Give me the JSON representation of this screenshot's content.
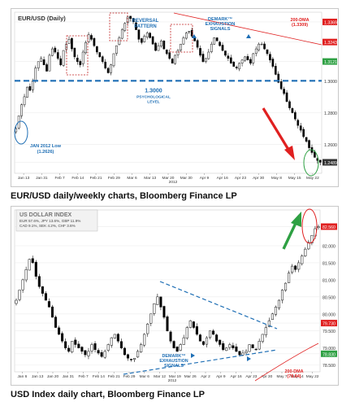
{
  "captions": {
    "top": "EUR/USD daily/weekly charts, Bloomberg Finance LP",
    "bottom": "USD Index daily chart, Bloomberg Finance LP"
  },
  "chart_data": [
    {
      "type": "candlestick",
      "title": "EUR/USD (Daily)",
      "ylim": [
        1.242,
        1.343
      ],
      "x_ticks": [
        "Jan 13",
        "Jan 31",
        "Feb 7",
        "Feb 14",
        "Feb 21",
        "Feb 29",
        "Mar 6",
        "Mar 13",
        "Mar 20",
        "Mar 30",
        "Apr 9",
        "Apr 16",
        "Apr 23",
        "Apr 30",
        "May 8",
        "May 15",
        "May 22"
      ],
      "year_label": "2012",
      "y_ticks": [
        {
          "value": 1.3369,
          "label": "1.3369",
          "highlight": "red"
        },
        {
          "value": 1.3243,
          "label": "1.3243",
          "highlight": "red"
        },
        {
          "value": 1.3121,
          "label": "1.3121",
          "highlight": "green"
        },
        {
          "value": 1.3,
          "label": "1.3000",
          "highlight": "none"
        },
        {
          "value": 1.28,
          "label": "1.2800",
          "highlight": "none"
        },
        {
          "value": 1.26,
          "label": "1.2600",
          "highlight": "none"
        },
        {
          "value": 1.2489,
          "label": "1.2489",
          "highlight": "dark"
        }
      ],
      "closes": [
        1.27,
        1.278,
        1.285,
        1.29,
        1.296,
        1.294,
        1.3,
        1.308,
        1.312,
        1.314,
        1.31,
        1.306,
        1.316,
        1.32,
        1.318,
        1.314,
        1.31,
        1.319,
        1.323,
        1.326,
        1.32,
        1.315,
        1.312,
        1.31,
        1.318,
        1.324,
        1.329,
        1.326,
        1.322,
        1.318,
        1.315,
        1.312,
        1.308,
        1.305,
        1.31,
        1.317,
        1.322,
        1.327,
        1.332,
        1.336,
        1.34,
        1.339,
        1.337,
        1.332,
        1.326,
        1.324,
        1.328,
        1.33,
        1.327,
        1.323,
        1.319,
        1.322,
        1.325,
        1.32,
        1.317,
        1.314,
        1.311,
        1.316,
        1.319,
        1.323,
        1.327,
        1.33,
        1.331,
        1.328,
        1.325,
        1.321,
        1.316,
        1.312,
        1.314,
        1.318,
        1.323,
        1.327,
        1.325,
        1.322,
        1.319,
        1.316,
        1.314,
        1.311,
        1.309,
        1.308,
        1.311,
        1.313,
        1.315,
        1.313,
        1.311,
        1.317,
        1.32,
        1.323,
        1.323,
        1.32,
        1.317,
        1.313,
        1.309,
        1.304,
        1.299,
        1.295,
        1.292,
        1.287,
        1.283,
        1.28,
        1.276,
        1.272,
        1.269,
        1.265,
        1.262,
        1.258,
        1.255,
        1.252,
        1.25,
        1.2489
      ],
      "annotations": {
        "reversal": "REVERSAL PATTERN",
        "demark": "DEMARK™ EXHAUSTION SIGNALS",
        "psych_value": "1.3000",
        "psych_label": "PSYCHOLOGICAL LEVEL",
        "low_line1": "JAN 2012 Low",
        "low_line2": "(1.2626)",
        "dma_line1": "200-DMA",
        "dma_line2": "(1.3309)"
      },
      "colors": {
        "up": "#ffffff",
        "down": "#000000",
        "accent": "#1f6fb5",
        "arrow": "#e02020",
        "green": "#2ea043"
      }
    },
    {
      "type": "candlestick",
      "title": "US DOLLAR INDEX",
      "ylim": [
        78.3,
        83.05
      ],
      "legend_lines": [
        "EUR 57.6%, JPY 13.6%, GBP 11.9%",
        "CAD 9.1%, SEK 4.2%, CHF 3.6%"
      ],
      "x_ticks": [
        "Jan 6",
        "Jan 13",
        "Jan 20",
        "Jan 31",
        "Feb 7",
        "Feb 14",
        "Feb 21",
        "Feb 29",
        "Mar 6",
        "Mar 12",
        "Mar 19",
        "Mar 26",
        "Apr 2",
        "Apr 9",
        "Apr 16",
        "Apr 23",
        "Apr 30",
        "May 7",
        "May 14",
        "May 22"
      ],
      "year_label": "2012",
      "y_ticks": [
        {
          "value": 82.56,
          "label": "82.560",
          "highlight": "red"
        },
        {
          "value": 82.0,
          "label": "82.000",
          "highlight": "none"
        },
        {
          "value": 81.5,
          "label": "81.500",
          "highlight": "none"
        },
        {
          "value": 81.0,
          "label": "81.000",
          "highlight": "none"
        },
        {
          "value": 80.5,
          "label": "80.500",
          "highlight": "none"
        },
        {
          "value": 80.0,
          "label": "80.000",
          "highlight": "none"
        },
        {
          "value": 79.73,
          "label": "79.730",
          "highlight": "red"
        },
        {
          "value": 79.5,
          "label": "79.500",
          "highlight": "none"
        },
        {
          "value": 79.0,
          "label": "79.000",
          "highlight": "none"
        },
        {
          "value": 78.83,
          "label": "78.830",
          "highlight": "green"
        },
        {
          "value": 78.5,
          "label": "78.500",
          "highlight": "none"
        }
      ],
      "closes": [
        80.4,
        80.7,
        81.0,
        81.3,
        81.6,
        81.5,
        81.1,
        80.8,
        80.6,
        80.4,
        80.2,
        79.9,
        79.6,
        79.4,
        79.2,
        79.0,
        78.9,
        79.2,
        79.1,
        79.0,
        78.9,
        78.8,
        78.9,
        79.1,
        78.95,
        78.85,
        78.75,
        78.9,
        79.1,
        79.3,
        79.4,
        79.2,
        79.0,
        78.8,
        78.7,
        78.65,
        78.7,
        78.9,
        79.1,
        79.4,
        79.7,
        80.0,
        80.3,
        80.5,
        80.2,
        79.9,
        79.5,
        79.2,
        79.0,
        78.9,
        79.1,
        79.3,
        79.6,
        79.8,
        79.6,
        79.4,
        79.2,
        79.1,
        79.3,
        79.5,
        79.4,
        79.2,
        79.1,
        78.95,
        79.0,
        79.1,
        79.0,
        78.9,
        78.8,
        78.85,
        78.9,
        79.1,
        79.0,
        78.95,
        79.2,
        79.4,
        79.6,
        79.8,
        80.0,
        80.2,
        80.4,
        80.7,
        80.9,
        81.2,
        81.4,
        81.3,
        81.5,
        81.7,
        81.9,
        82.1,
        82.3,
        82.5,
        82.56
      ],
      "annotations": {
        "demark": "DEMARK™ EXHAUSTION SIGNALS",
        "dma_line1": "200-DMA",
        "dma_line2": "(78.84)"
      },
      "colors": {
        "up": "#ffffff",
        "down": "#000000",
        "accent": "#1f6fb5",
        "arrow": "#2ea043",
        "red": "#e02020"
      }
    }
  ]
}
